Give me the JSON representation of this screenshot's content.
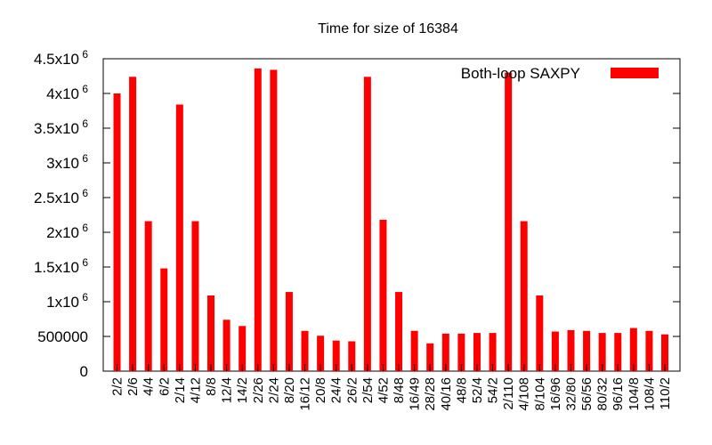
{
  "chart_data": {
    "type": "bar",
    "title": "Time for size of 16384",
    "xlabel": "",
    "ylabel": "",
    "ylim": [
      0,
      4500000
    ],
    "grid": false,
    "legend_position": "top-right",
    "y_tick_labels": [
      {
        "value": 0,
        "base": "0",
        "exp": ""
      },
      {
        "value": 500000,
        "base": "500000",
        "exp": ""
      },
      {
        "value": 1000000,
        "base": "1x10",
        "exp": "6"
      },
      {
        "value": 1500000,
        "base": "1.5x10",
        "exp": "6"
      },
      {
        "value": 2000000,
        "base": "2x10",
        "exp": "6"
      },
      {
        "value": 2500000,
        "base": "2.5x10",
        "exp": "6"
      },
      {
        "value": 3000000,
        "base": "3x10",
        "exp": "6"
      },
      {
        "value": 3500000,
        "base": "3.5x10",
        "exp": "6"
      },
      {
        "value": 4000000,
        "base": "4x10",
        "exp": "6"
      },
      {
        "value": 4500000,
        "base": "4.5x10",
        "exp": "6"
      }
    ],
    "categories": [
      "2/2",
      "2/6",
      "4/4",
      "6/2",
      "2/14",
      "4/12",
      "8/8",
      "12/4",
      "14/2",
      "2/26",
      "2/24",
      "8/20",
      "16/12",
      "20/8",
      "24/4",
      "26/2",
      "2/54",
      "4/52",
      "8/48",
      "16/49",
      "28/28",
      "40/16",
      "48/8",
      "52/4",
      "54/2",
      "2/110",
      "4/108",
      "8/104",
      "16/96",
      "32/80",
      "56/56",
      "80/32",
      "96/16",
      "104/8",
      "108/4",
      "110/2"
    ],
    "series": [
      {
        "name": "Both-loop SAXPY",
        "color": "#ff0000",
        "values": [
          4000000,
          4240000,
          2160000,
          1480000,
          3840000,
          2160000,
          1090000,
          740000,
          650000,
          4360000,
          4340000,
          1140000,
          580000,
          510000,
          440000,
          430000,
          4240000,
          2180000,
          1140000,
          580000,
          400000,
          540000,
          540000,
          550000,
          550000,
          4300000,
          2160000,
          1090000,
          570000,
          590000,
          580000,
          550000,
          550000,
          620000,
          580000,
          530000
        ]
      }
    ]
  }
}
